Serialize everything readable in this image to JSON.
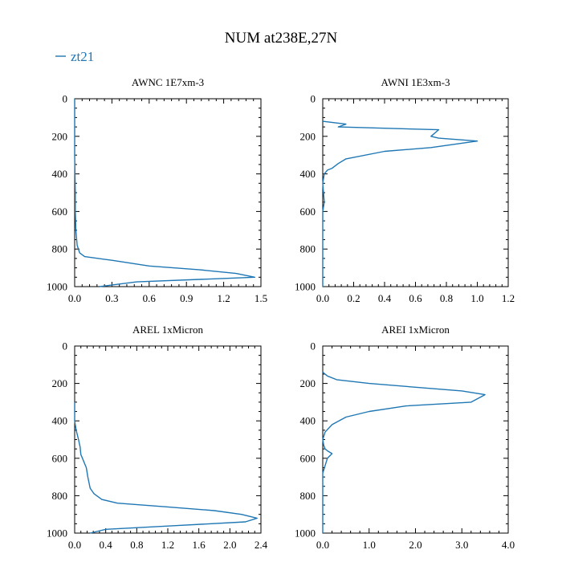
{
  "chart_data": {
    "title": "NUM at238E,27N",
    "legend": [
      {
        "label": "zt21",
        "color": "#1f77b4"
      }
    ],
    "legend_position": "top-left",
    "panels": [
      {
        "type": "line",
        "title": "AWNC  1E7xm-3",
        "xlim": [
          0,
          1.5
        ],
        "ylim": [
          1000,
          0
        ],
        "xticks": [
          0,
          0.3,
          0.6,
          0.9,
          1.2,
          1.5
        ],
        "xtick_labels": [
          "0.0",
          "0.3",
          "0.6",
          "0.9",
          "1.2",
          "1.5"
        ],
        "yticks": [
          0,
          200,
          400,
          600,
          800,
          1000
        ],
        "ytick_labels": [
          "0",
          "200",
          "400",
          "600",
          "800",
          "1000"
        ],
        "series": [
          {
            "name": "zt21",
            "x": [
              0.0,
              0.0,
              0.005,
              0.005,
              0.01,
              0.02,
              0.04,
              0.08,
              0.3,
              0.6,
              1.0,
              1.3,
              1.45,
              0.5,
              0.2
            ],
            "y": [
              0,
              300,
              500,
              600,
              700,
              780,
              820,
              840,
              860,
              890,
              910,
              930,
              950,
              975,
              1000
            ]
          }
        ]
      },
      {
        "type": "line",
        "title": "AWNI  1E3xm-3",
        "xlim": [
          0,
          1.2
        ],
        "ylim": [
          1000,
          0
        ],
        "xticks": [
          0,
          0.2,
          0.4,
          0.6,
          0.8,
          1.0,
          1.2
        ],
        "xtick_labels": [
          "0.0",
          "0.2",
          "0.4",
          "0.6",
          "0.8",
          "1.0",
          "1.2"
        ],
        "yticks": [
          0,
          200,
          400,
          600,
          800,
          1000
        ],
        "ytick_labels": [
          "0",
          "200",
          "400",
          "600",
          "800",
          "1000"
        ],
        "series": [
          {
            "name": "zt21",
            "x": [
              0.0,
              0.15,
              0.1,
              0.75,
              0.7,
              0.75,
              1.0,
              0.7,
              0.4,
              0.15,
              0.1,
              0.06,
              0.03,
              0.01,
              0.0,
              0.01,
              0.0,
              0.0
            ],
            "y": [
              120,
              135,
              150,
              165,
              200,
              210,
              225,
              260,
              280,
              320,
              345,
              370,
              380,
              400,
              450,
              550,
              600,
              1000
            ]
          }
        ]
      },
      {
        "type": "line",
        "title": "AREL  1xMicron",
        "xlim": [
          0,
          2.4
        ],
        "ylim": [
          1000,
          0
        ],
        "xticks": [
          0,
          0.4,
          0.8,
          1.2,
          1.6,
          2.0,
          2.4
        ],
        "xtick_labels": [
          "0.0",
          "0.4",
          "0.8",
          "1.2",
          "1.6",
          "2.0",
          "2.4"
        ],
        "yticks": [
          0,
          200,
          400,
          600,
          800,
          1000
        ],
        "ytick_labels": [
          "0",
          "200",
          "400",
          "600",
          "800",
          "1000"
        ],
        "series": [
          {
            "name": "zt21",
            "x": [
              0.0,
              0.0,
              0.02,
              0.05,
              0.07,
              0.08,
              0.1,
              0.12,
              0.15,
              0.17,
              0.2,
              0.25,
              0.35,
              0.55,
              1.2,
              1.8,
              2.15,
              2.35,
              2.2,
              1.3,
              0.4,
              0.2
            ],
            "y": [
              300,
              400,
              450,
              500,
              540,
              580,
              600,
              620,
              650,
              700,
              760,
              790,
              820,
              840,
              860,
              880,
              900,
              920,
              940,
              960,
              980,
              1000
            ]
          }
        ]
      },
      {
        "type": "line",
        "title": "AREI  1xMicron",
        "xlim": [
          0,
          4.0
        ],
        "ylim": [
          1000,
          0
        ],
        "xticks": [
          0,
          1,
          2,
          3,
          4
        ],
        "xtick_labels": [
          "0.0",
          "1.0",
          "2.0",
          "3.0",
          "4.0"
        ],
        "yticks": [
          0,
          200,
          400,
          600,
          800,
          1000
        ],
        "ytick_labels": [
          "0",
          "200",
          "400",
          "600",
          "800",
          "1000"
        ],
        "series": [
          {
            "name": "zt21",
            "x": [
              0.0,
              0.1,
              0.3,
              1.0,
              2.0,
              3.0,
              3.5,
              3.2,
              1.8,
              1.0,
              0.5,
              0.2,
              0.05,
              0.0,
              0.02,
              0.05,
              0.1,
              0.2,
              0.1,
              0.05,
              0.0,
              0.0
            ],
            "y": [
              140,
              160,
              180,
              200,
              220,
              240,
              260,
              300,
              320,
              350,
              380,
              420,
              460,
              500,
              530,
              550,
              560,
              575,
              600,
              640,
              680,
              1000
            ]
          }
        ]
      }
    ]
  }
}
